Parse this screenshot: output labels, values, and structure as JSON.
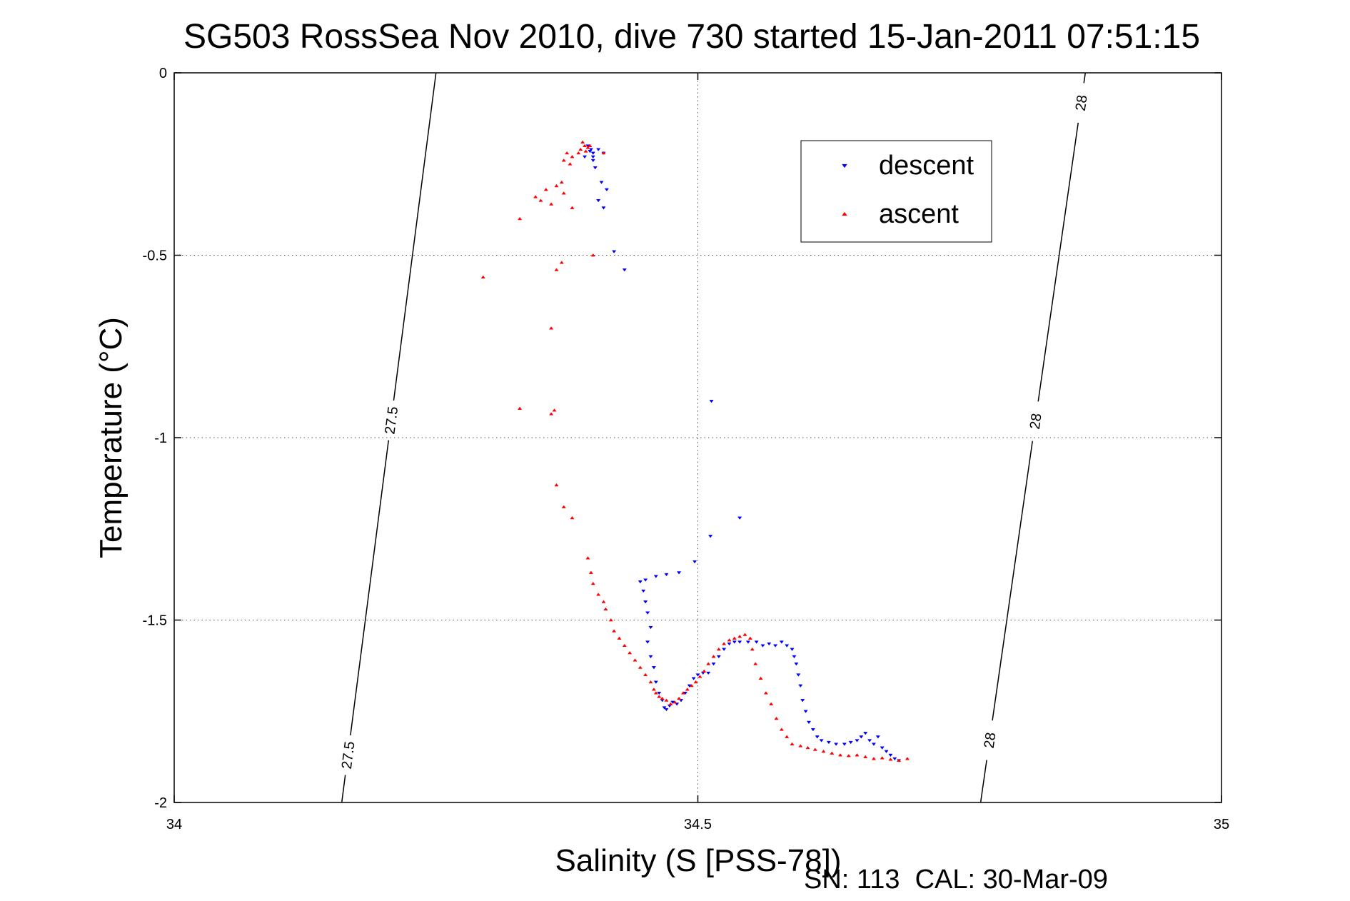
{
  "chart_data": {
    "type": "scatter",
    "title": "SG503 RossSea Nov 2010, dive 730 started 15-Jan-2011 07:51:15",
    "xlabel": "Salinity (S [PSS-78])",
    "ylabel": "Temperature (°C)",
    "xlim": [
      34,
      35
    ],
    "ylim": [
      -2,
      0
    ],
    "xticks": [
      34,
      34.5,
      35
    ],
    "xtick_labels": [
      "34",
      "34.5",
      "35"
    ],
    "yticks": [
      0,
      -0.5,
      -1,
      -1.5,
      -2
    ],
    "ytick_labels": [
      "0",
      "-0.5",
      "-1",
      "-1.5",
      "-2"
    ],
    "grid": true,
    "legend_position": "top-right",
    "footer": "SN: 113  CAL: 30-Mar-09",
    "isopycnals": [
      {
        "label": "27.5",
        "points": [
          [
            34.16,
            -2.0
          ],
          [
            34.25,
            0.0
          ]
        ],
        "label_positions": [
          [
            34.165,
            -1.87
          ],
          [
            34.2,
            -0.95
          ]
        ]
      },
      {
        "label": "28",
        "points": [
          [
            34.77,
            -2.0
          ],
          [
            34.87,
            0.0
          ]
        ],
        "label_positions": [
          [
            34.78,
            -1.83
          ],
          [
            34.81,
            -0.95
          ],
          [
            34.86,
            -0.08
          ]
        ]
      }
    ],
    "series": [
      {
        "name": "descent",
        "color": "#0000ff",
        "marker": "triangle-down",
        "points": [
          [
            34.395,
            -0.2
          ],
          [
            34.398,
            -0.21
          ],
          [
            34.4,
            -0.22
          ],
          [
            34.397,
            -0.215
          ],
          [
            34.4,
            -0.23
          ],
          [
            34.405,
            -0.21
          ],
          [
            34.41,
            -0.22
          ],
          [
            34.392,
            -0.23
          ],
          [
            34.4,
            -0.24
          ],
          [
            34.402,
            -0.26
          ],
          [
            34.408,
            -0.3
          ],
          [
            34.413,
            -0.32
          ],
          [
            34.405,
            -0.35
          ],
          [
            34.41,
            -0.37
          ],
          [
            34.42,
            -0.49
          ],
          [
            34.43,
            -0.54
          ],
          [
            34.513,
            -0.9
          ],
          [
            34.54,
            -1.22
          ],
          [
            34.512,
            -1.27
          ],
          [
            34.497,
            -1.34
          ],
          [
            34.482,
            -1.37
          ],
          [
            34.47,
            -1.375
          ],
          [
            34.46,
            -1.38
          ],
          [
            34.45,
            -1.39
          ],
          [
            34.445,
            -1.395
          ],
          [
            34.448,
            -1.42
          ],
          [
            34.45,
            -1.45
          ],
          [
            34.452,
            -1.48
          ],
          [
            34.455,
            -1.52
          ],
          [
            34.452,
            -1.56
          ],
          [
            34.455,
            -1.6
          ],
          [
            34.458,
            -1.63
          ],
          [
            34.46,
            -1.67
          ],
          [
            34.463,
            -1.7
          ],
          [
            34.466,
            -1.72
          ],
          [
            34.468,
            -1.74
          ],
          [
            34.47,
            -1.745
          ],
          [
            34.473,
            -1.735
          ],
          [
            34.476,
            -1.725
          ],
          [
            34.48,
            -1.73
          ],
          [
            34.484,
            -1.72
          ],
          [
            34.488,
            -1.7
          ],
          [
            34.492,
            -1.68
          ],
          [
            34.496,
            -1.66
          ],
          [
            34.5,
            -1.65
          ],
          [
            34.505,
            -1.645
          ],
          [
            34.51,
            -1.645
          ],
          [
            34.515,
            -1.62
          ],
          [
            34.52,
            -1.6
          ],
          [
            34.525,
            -1.58
          ],
          [
            34.53,
            -1.565
          ],
          [
            34.535,
            -1.56
          ],
          [
            34.54,
            -1.56
          ],
          [
            34.548,
            -1.56
          ],
          [
            34.556,
            -1.56
          ],
          [
            34.562,
            -1.57
          ],
          [
            34.568,
            -1.565
          ],
          [
            34.574,
            -1.57
          ],
          [
            34.58,
            -1.56
          ],
          [
            34.585,
            -1.57
          ],
          [
            34.59,
            -1.58
          ],
          [
            34.592,
            -1.6
          ],
          [
            34.594,
            -1.62
          ],
          [
            34.596,
            -1.65
          ],
          [
            34.598,
            -1.68
          ],
          [
            34.6,
            -1.72
          ],
          [
            34.603,
            -1.75
          ],
          [
            34.606,
            -1.78
          ],
          [
            34.61,
            -1.8
          ],
          [
            34.614,
            -1.82
          ],
          [
            34.618,
            -1.83
          ],
          [
            34.625,
            -1.835
          ],
          [
            34.632,
            -1.84
          ],
          [
            34.64,
            -1.84
          ],
          [
            34.646,
            -1.835
          ],
          [
            34.652,
            -1.83
          ],
          [
            34.656,
            -1.82
          ],
          [
            34.66,
            -1.81
          ],
          [
            34.664,
            -1.83
          ],
          [
            34.668,
            -1.84
          ],
          [
            34.672,
            -1.82
          ],
          [
            34.676,
            -1.85
          ],
          [
            34.68,
            -1.86
          ],
          [
            34.684,
            -1.87
          ],
          [
            34.688,
            -1.88
          ],
          [
            34.692,
            -1.885
          ]
        ]
      },
      {
        "name": "ascent",
        "color": "#ff0000",
        "marker": "triangle-up",
        "points": [
          [
            34.39,
            -0.19
          ],
          [
            34.392,
            -0.2
          ],
          [
            34.395,
            -0.205
          ],
          [
            34.388,
            -0.21
          ],
          [
            34.393,
            -0.215
          ],
          [
            34.397,
            -0.2
          ],
          [
            34.386,
            -0.22
          ],
          [
            34.38,
            -0.23
          ],
          [
            34.372,
            -0.24
          ],
          [
            34.375,
            -0.22
          ],
          [
            34.378,
            -0.25
          ],
          [
            34.37,
            -0.3
          ],
          [
            34.365,
            -0.31
          ],
          [
            34.372,
            -0.33
          ],
          [
            34.36,
            -0.36
          ],
          [
            34.355,
            -0.32
          ],
          [
            34.35,
            -0.35
          ],
          [
            34.345,
            -0.34
          ],
          [
            34.38,
            -0.37
          ],
          [
            34.41,
            -0.22
          ],
          [
            34.33,
            -0.4
          ],
          [
            34.4,
            -0.5
          ],
          [
            34.37,
            -0.52
          ],
          [
            34.365,
            -0.54
          ],
          [
            34.295,
            -0.56
          ],
          [
            34.36,
            -0.7
          ],
          [
            34.33,
            -0.92
          ],
          [
            34.36,
            -0.935
          ],
          [
            34.363,
            -0.925
          ],
          [
            34.365,
            -1.13
          ],
          [
            34.372,
            -1.19
          ],
          [
            34.38,
            -1.22
          ],
          [
            34.395,
            -1.33
          ],
          [
            34.398,
            -1.37
          ],
          [
            34.4,
            -1.4
          ],
          [
            34.405,
            -1.43
          ],
          [
            34.41,
            -1.45
          ],
          [
            34.412,
            -1.47
          ],
          [
            34.417,
            -1.5
          ],
          [
            34.42,
            -1.53
          ],
          [
            34.425,
            -1.55
          ],
          [
            34.43,
            -1.57
          ],
          [
            34.435,
            -1.59
          ],
          [
            34.44,
            -1.61
          ],
          [
            34.445,
            -1.63
          ],
          [
            34.45,
            -1.65
          ],
          [
            34.455,
            -1.67
          ],
          [
            34.458,
            -1.69
          ],
          [
            34.46,
            -1.7
          ],
          [
            34.463,
            -1.71
          ],
          [
            34.466,
            -1.715
          ],
          [
            34.47,
            -1.72
          ],
          [
            34.474,
            -1.73
          ],
          [
            34.478,
            -1.725
          ],
          [
            34.482,
            -1.715
          ],
          [
            34.486,
            -1.7
          ],
          [
            34.49,
            -1.69
          ],
          [
            34.494,
            -1.68
          ],
          [
            34.498,
            -1.67
          ],
          [
            34.502,
            -1.655
          ],
          [
            34.506,
            -1.64
          ],
          [
            34.51,
            -1.62
          ],
          [
            34.515,
            -1.6
          ],
          [
            34.52,
            -1.58
          ],
          [
            34.525,
            -1.565
          ],
          [
            34.53,
            -1.555
          ],
          [
            34.535,
            -1.55
          ],
          [
            34.54,
            -1.545
          ],
          [
            34.545,
            -1.54
          ],
          [
            34.55,
            -1.55
          ],
          [
            34.552,
            -1.58
          ],
          [
            34.555,
            -1.62
          ],
          [
            34.56,
            -1.66
          ],
          [
            34.565,
            -1.7
          ],
          [
            34.57,
            -1.73
          ],
          [
            34.575,
            -1.77
          ],
          [
            34.58,
            -1.8
          ],
          [
            34.585,
            -1.82
          ],
          [
            34.59,
            -1.84
          ],
          [
            34.598,
            -1.845
          ],
          [
            34.605,
            -1.85
          ],
          [
            34.612,
            -1.855
          ],
          [
            34.62,
            -1.86
          ],
          [
            34.628,
            -1.865
          ],
          [
            34.636,
            -1.87
          ],
          [
            34.644,
            -1.872
          ],
          [
            34.652,
            -1.87
          ],
          [
            34.66,
            -1.875
          ],
          [
            34.668,
            -1.88
          ],
          [
            34.676,
            -1.878
          ],
          [
            34.684,
            -1.882
          ],
          [
            34.692,
            -1.885
          ],
          [
            34.7,
            -1.88
          ]
        ]
      }
    ]
  }
}
